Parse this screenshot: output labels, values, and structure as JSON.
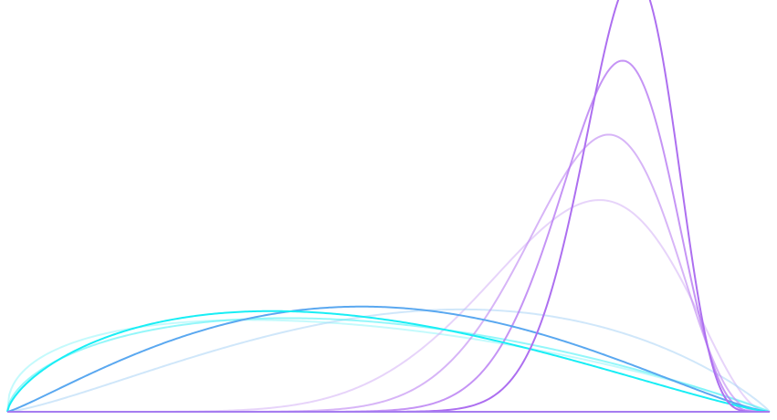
{
  "chart_data": {
    "type": "line",
    "title": "",
    "xlabel": "",
    "ylabel": "",
    "xlim": [
      0,
      1
    ],
    "ylim": [
      0,
      6.2
    ],
    "grid": false,
    "legend": "none",
    "baseline_color": "#a57cf0",
    "series": [
      {
        "kind": "beta",
        "a": 2.18,
        "b": 2.36,
        "color": "#5aa8f0",
        "opacity": 1.0,
        "width": 2.0
      },
      {
        "kind": "beta",
        "a": 2.33,
        "b": 1.9,
        "color": "#a9d3f5",
        "opacity": 0.55,
        "width": 2.0
      },
      {
        "kind": "beta",
        "a": 1.68,
        "b": 2.28,
        "color": "#19eef5",
        "opacity": 1.0,
        "width": 2.0
      },
      {
        "kind": "beta",
        "a": 1.57,
        "b": 1.98,
        "color": "#5af3f8",
        "opacity": 0.65,
        "width": 2.0
      },
      {
        "kind": "beta",
        "a": 1.42,
        "b": 1.9,
        "color": "#7cf5f8",
        "opacity": 0.45,
        "width": 2.0
      },
      {
        "kind": "beta",
        "a": 34.0,
        "b": 8.11,
        "color": "#ad6ff0",
        "opacity": 1.0,
        "width": 2.0
      },
      {
        "kind": "beta",
        "a": 23.0,
        "b": 6.26,
        "color": "#b679f2",
        "opacity": 0.8,
        "width": 2.0
      },
      {
        "kind": "beta",
        "a": 15.0,
        "b": 4.75,
        "color": "#c18df3",
        "opacity": 0.65,
        "width": 2.0
      },
      {
        "kind": "beta",
        "a": 9.0,
        "b": 3.3,
        "color": "#d0aaf5",
        "opacity": 0.5,
        "width": 2.0
      }
    ]
  }
}
